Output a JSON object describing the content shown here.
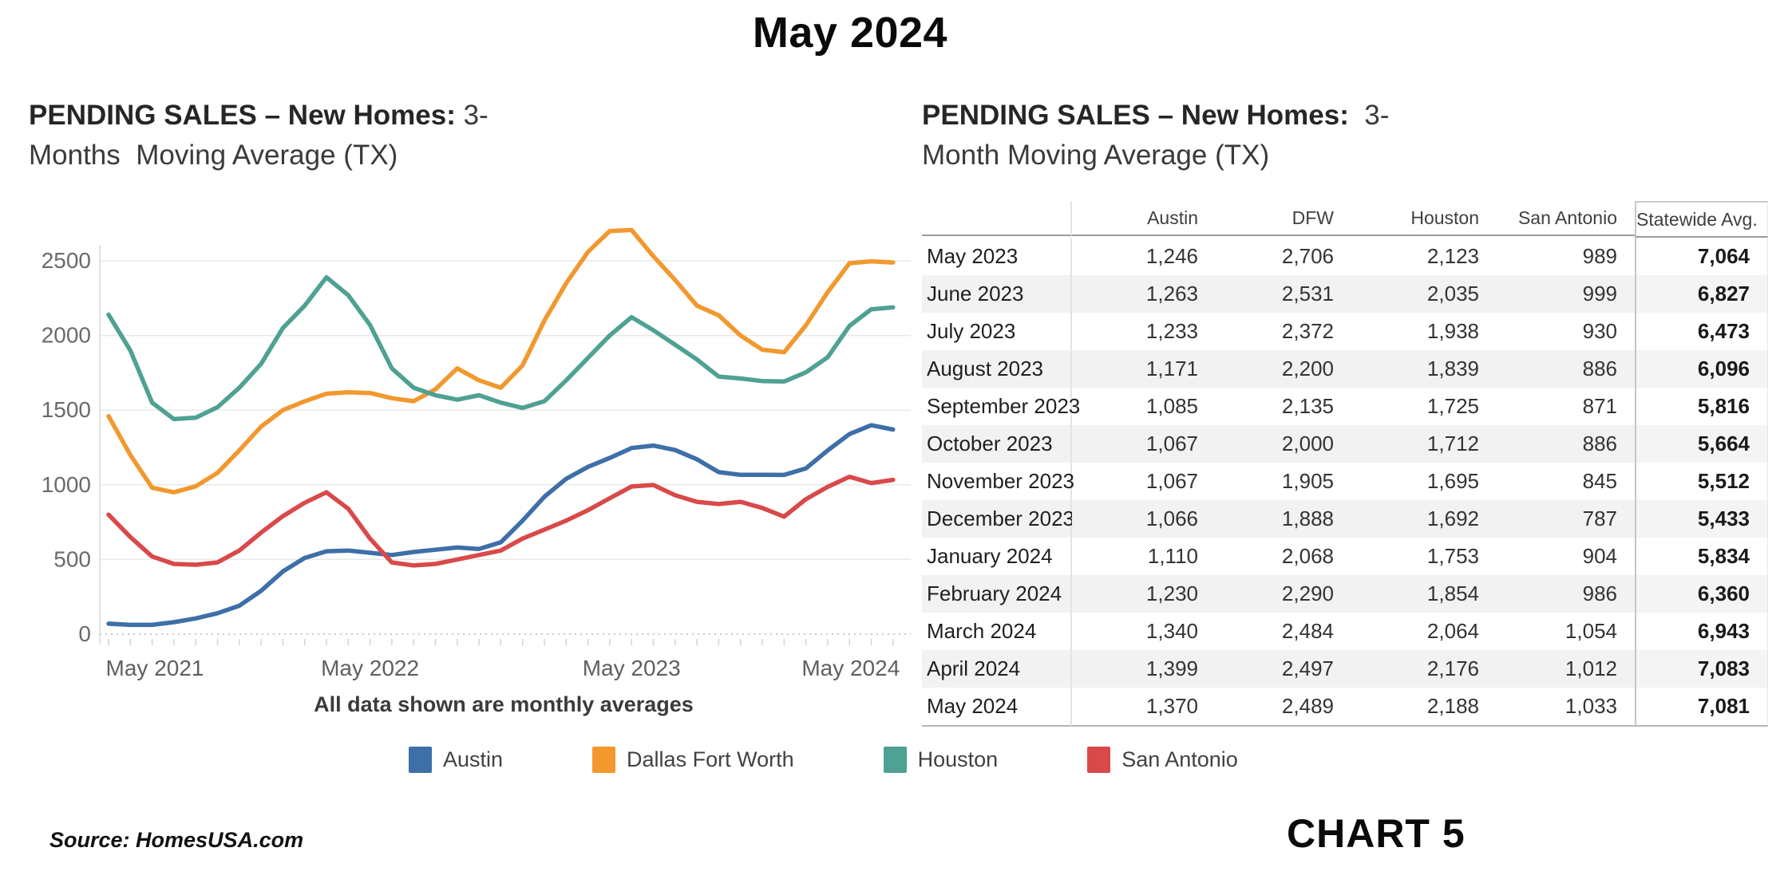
{
  "page": {
    "title": "May 2024",
    "source": "Source: HomesUSA.com",
    "chart_label": "CHART 5"
  },
  "left_panel": {
    "title_lead": "PENDING SALES – New Homes: ",
    "title_rest": "3-Months  Moving Average (TX)",
    "caption": "All data shown are monthly averages"
  },
  "right_panel": {
    "title_lead": "PENDING SALES – New Homes:  ",
    "title_rest": "3-Month Moving Average (TX)"
  },
  "chart_data": [
    {
      "type": "line",
      "title": "PENDING SALES – New Homes: 3-Months Moving Average (TX)",
      "xlabel": "",
      "ylabel": "",
      "ylim": [
        0,
        2750
      ],
      "yticks": [
        0,
        500,
        1000,
        1500,
        2000,
        2500
      ],
      "grid": true,
      "zero_line_style": "dotted",
      "legend_position": "bottom",
      "caption": "All data shown are monthly averages",
      "x_shown_tick_labels": [
        "May 2021",
        "May 2022",
        "May 2023",
        "May 2024"
      ],
      "x": [
        "May 2021",
        "June 2021",
        "July 2021",
        "August 2021",
        "September 2021",
        "October 2021",
        "November 2021",
        "December 2021",
        "January 2022",
        "February 2022",
        "March 2022",
        "April 2022",
        "May 2022",
        "June 2022",
        "July 2022",
        "August 2022",
        "September 2022",
        "October 2022",
        "November 2022",
        "December 2022",
        "January 2023",
        "February 2023",
        "March 2023",
        "April 2023",
        "May 2023",
        "June 2023",
        "July 2023",
        "August 2023",
        "September 2023",
        "October 2023",
        "November 2023",
        "December 2023",
        "January 2024",
        "February 2024",
        "March 2024",
        "April 2024",
        "May 2024"
      ],
      "series": [
        {
          "name": "Austin",
          "color": "#3d6fa8",
          "values": [
            70,
            62,
            62,
            80,
            105,
            140,
            190,
            290,
            420,
            510,
            555,
            560,
            545,
            530,
            550,
            565,
            580,
            570,
            615,
            760,
            920,
            1040,
            1120,
            1180,
            1246,
            1263,
            1233,
            1171,
            1085,
            1067,
            1067,
            1066,
            1110,
            1230,
            1340,
            1399,
            1370
          ]
        },
        {
          "name": "Dallas Fort Worth",
          "color": "#f2982e",
          "values": [
            1460,
            1200,
            980,
            950,
            990,
            1080,
            1230,
            1390,
            1500,
            1560,
            1610,
            1620,
            1615,
            1580,
            1560,
            1640,
            1780,
            1700,
            1650,
            1800,
            2100,
            2350,
            2560,
            2700,
            2706,
            2531,
            2372,
            2200,
            2135,
            2000,
            1905,
            1888,
            2068,
            2290,
            2484,
            2497,
            2489
          ]
        },
        {
          "name": "Houston",
          "color": "#4fa193",
          "values": [
            2140,
            1900,
            1550,
            1440,
            1450,
            1520,
            1650,
            1810,
            2050,
            2200,
            2390,
            2270,
            2070,
            1780,
            1650,
            1600,
            1570,
            1600,
            1550,
            1515,
            1560,
            1700,
            1850,
            2000,
            2123,
            2035,
            1938,
            1839,
            1725,
            1712,
            1695,
            1692,
            1753,
            1854,
            2064,
            2176,
            2188
          ]
        },
        {
          "name": "San Antonio",
          "color": "#d9494a",
          "values": [
            800,
            650,
            520,
            470,
            465,
            480,
            560,
            680,
            790,
            880,
            950,
            840,
            640,
            480,
            460,
            470,
            500,
            530,
            560,
            640,
            700,
            760,
            830,
            910,
            989,
            999,
            930,
            886,
            871,
            886,
            845,
            787,
            904,
            986,
            1054,
            1012,
            1033
          ]
        }
      ]
    },
    {
      "type": "table",
      "title": "PENDING SALES – New Homes: 3-Month Moving Average (TX)",
      "columns": [
        "",
        "Austin",
        "DFW",
        "Houston",
        "San Antonio",
        "Statewide Avg."
      ],
      "rows": [
        {
          "label": "May 2023",
          "values": [
            "1,246",
            "2,706",
            "2,123",
            "989",
            "7,064"
          ]
        },
        {
          "label": "June 2023",
          "values": [
            "1,263",
            "2,531",
            "2,035",
            "999",
            "6,827"
          ]
        },
        {
          "label": "July 2023",
          "values": [
            "1,233",
            "2,372",
            "1,938",
            "930",
            "6,473"
          ]
        },
        {
          "label": "August 2023",
          "values": [
            "1,171",
            "2,200",
            "1,839",
            "886",
            "6,096"
          ]
        },
        {
          "label": "September 2023",
          "values": [
            "1,085",
            "2,135",
            "1,725",
            "871",
            "5,816"
          ]
        },
        {
          "label": "October 2023",
          "values": [
            "1,067",
            "2,000",
            "1,712",
            "886",
            "5,664"
          ]
        },
        {
          "label": "November 2023",
          "values": [
            "1,067",
            "1,905",
            "1,695",
            "845",
            "5,512"
          ]
        },
        {
          "label": "December 2023",
          "values": [
            "1,066",
            "1,888",
            "1,692",
            "787",
            "5,433"
          ]
        },
        {
          "label": "January 2024",
          "values": [
            "1,110",
            "2,068",
            "1,753",
            "904",
            "5,834"
          ]
        },
        {
          "label": "February 2024",
          "values": [
            "1,230",
            "2,290",
            "1,854",
            "986",
            "6,360"
          ]
        },
        {
          "label": "March 2024",
          "values": [
            "1,340",
            "2,484",
            "2,064",
            "1,054",
            "6,943"
          ]
        },
        {
          "label": "April 2024",
          "values": [
            "1,399",
            "2,497",
            "2,176",
            "1,012",
            "7,083"
          ]
        },
        {
          "label": "May 2024",
          "values": [
            "1,370",
            "2,489",
            "2,188",
            "1,033",
            "7,081"
          ]
        }
      ]
    }
  ],
  "colors": {
    "austin": "#3d6fa8",
    "dallas_fort_worth": "#f2982e",
    "houston": "#4fa193",
    "san_antonio": "#d9494a",
    "grid": "#e9e9e9",
    "axis_text": "#6a6a6a"
  }
}
